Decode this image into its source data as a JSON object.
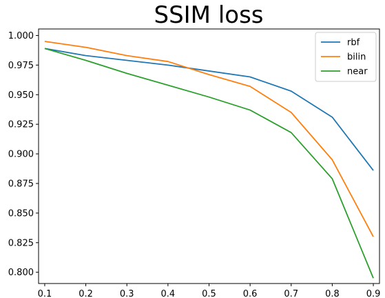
{
  "chart_data": {
    "type": "line",
    "title": "SSIM loss",
    "xlabel": "",
    "ylabel": "",
    "x": [
      0.1,
      0.2,
      0.3,
      0.4,
      0.5,
      0.6,
      0.7,
      0.8,
      0.9
    ],
    "xticks": [
      "0.1",
      "0.2",
      "0.3",
      "0.4",
      "0.5",
      "0.6",
      "0.7",
      "0.8",
      "0.9"
    ],
    "yticks": [
      "0.800",
      "0.825",
      "0.850",
      "0.875",
      "0.900",
      "0.925",
      "0.950",
      "0.975",
      "1.000"
    ],
    "xlim": [
      0.085,
      0.915
    ],
    "ylim": [
      0.7905,
      1.0055
    ],
    "grid": false,
    "legend_position": "top-right",
    "series": [
      {
        "name": "rbf",
        "color": "#1f77b4",
        "values": [
          0.989,
          0.983,
          0.979,
          0.975,
          0.97,
          0.965,
          0.953,
          0.931,
          0.886
        ]
      },
      {
        "name": "bilin",
        "color": "#ff7f0e",
        "values": [
          0.995,
          0.99,
          0.983,
          0.978,
          0.967,
          0.957,
          0.935,
          0.895,
          0.83
        ]
      },
      {
        "name": "near",
        "color": "#2ca02c",
        "values": [
          0.989,
          0.979,
          0.968,
          0.958,
          0.948,
          0.937,
          0.918,
          0.879,
          0.795
        ]
      }
    ]
  }
}
